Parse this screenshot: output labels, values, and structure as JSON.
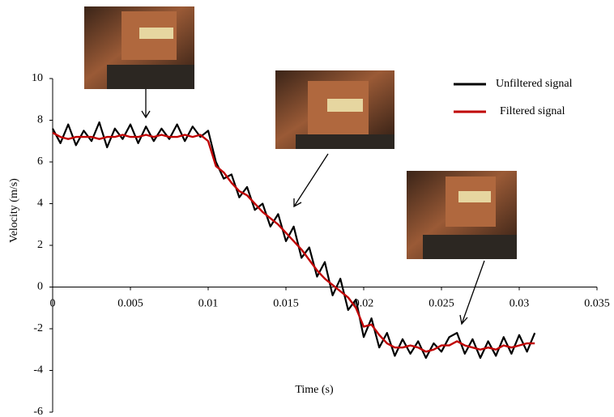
{
  "chart_data": {
    "type": "line",
    "x_label": "Time (s)",
    "y_label": "Velocity (m/s)",
    "x": [
      0,
      0.0005,
      0.001,
      0.0015,
      0.002,
      0.0025,
      0.003,
      0.0035,
      0.004,
      0.0045,
      0.005,
      0.0055,
      0.006,
      0.0065,
      0.007,
      0.0075,
      0.008,
      0.0085,
      0.009,
      0.0095,
      0.01,
      0.0105,
      0.011,
      0.0115,
      0.012,
      0.0125,
      0.013,
      0.0135,
      0.014,
      0.0145,
      0.015,
      0.0155,
      0.016,
      0.0165,
      0.017,
      0.0175,
      0.018,
      0.0185,
      0.019,
      0.0195,
      0.02,
      0.0205,
      0.021,
      0.0215,
      0.022,
      0.0225,
      0.023,
      0.0235,
      0.024,
      0.0245,
      0.025,
      0.0255,
      0.026,
      0.0265,
      0.027,
      0.0275,
      0.028,
      0.0285,
      0.029,
      0.0295,
      0.03,
      0.0305,
      0.031
    ],
    "series": [
      {
        "name": "Unfiltered signal",
        "color": "#000000",
        "values": [
          7.6,
          6.9,
          7.8,
          6.8,
          7.5,
          7.0,
          7.9,
          6.7,
          7.6,
          7.1,
          7.8,
          6.9,
          7.7,
          7.0,
          7.6,
          7.1,
          7.8,
          7.0,
          7.7,
          7.2,
          7.5,
          6.0,
          5.2,
          5.4,
          4.3,
          4.8,
          3.7,
          4.0,
          2.9,
          3.5,
          2.2,
          2.9,
          1.4,
          1.9,
          0.5,
          1.2,
          -0.4,
          0.4,
          -1.1,
          -0.6,
          -2.4,
          -1.5,
          -2.9,
          -2.2,
          -3.3,
          -2.5,
          -3.2,
          -2.6,
          -3.4,
          -2.7,
          -3.1,
          -2.4,
          -2.2,
          -3.2,
          -2.5,
          -3.4,
          -2.6,
          -3.3,
          -2.4,
          -3.2,
          -2.3,
          -3.1,
          -2.2
        ]
      },
      {
        "name": "Filtered signal",
        "color": "#c00000",
        "values": [
          7.4,
          7.2,
          7.1,
          7.2,
          7.2,
          7.2,
          7.1,
          7.2,
          7.2,
          7.3,
          7.2,
          7.2,
          7.3,
          7.2,
          7.3,
          7.2,
          7.2,
          7.3,
          7.2,
          7.3,
          7.0,
          5.8,
          5.5,
          5.0,
          4.6,
          4.4,
          4.0,
          3.6,
          3.3,
          3.0,
          2.6,
          2.2,
          1.8,
          1.3,
          0.8,
          0.4,
          0.1,
          -0.2,
          -0.5,
          -1.0,
          -1.9,
          -1.8,
          -2.3,
          -2.7,
          -2.9,
          -2.9,
          -2.8,
          -2.9,
          -3.1,
          -3.0,
          -2.8,
          -2.8,
          -2.6,
          -2.8,
          -2.9,
          -3.0,
          -2.9,
          -3.0,
          -2.8,
          -2.9,
          -2.8,
          -2.7,
          -2.7
        ]
      }
    ],
    "xlim": [
      0,
      0.035
    ],
    "xticks": [
      0,
      0.005,
      0.01,
      0.015,
      0.02,
      0.025,
      0.03,
      0.035
    ],
    "ylim": [
      -6,
      10
    ],
    "yticks": [
      -6,
      -4,
      -2,
      0,
      2,
      4,
      6,
      8,
      10
    ],
    "grid": false,
    "legend": "upper right"
  }
}
